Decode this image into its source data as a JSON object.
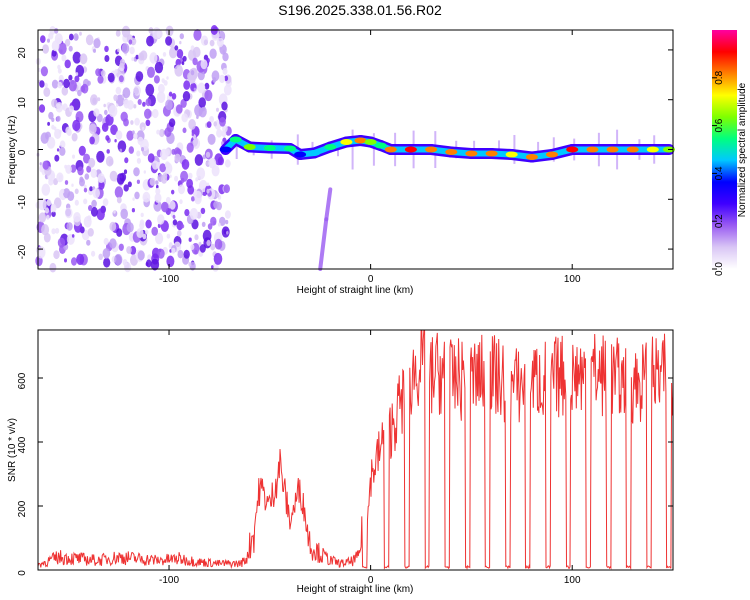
{
  "title": "S196.2025.338.01.56.R02",
  "chart_data": [
    {
      "type": "heatmap",
      "xlabel": "Height of straight line (km)",
      "ylabel": "Frequency (Hz)",
      "xlim": [
        -165,
        150
      ],
      "ylim": [
        -24,
        24
      ],
      "xticks": [
        -100,
        0,
        100
      ],
      "xtick_labels": [
        "-100",
        "0",
        "100"
      ],
      "yticks": [
        20,
        10,
        0,
        -10,
        -20
      ],
      "ytick_labels": [
        "20",
        "10",
        "0",
        "-10",
        "-20"
      ],
      "colorbar": {
        "label": "Normalized spectral amplitude",
        "range": [
          0,
          1
        ],
        "ticks": [
          0.0,
          0.2,
          0.4,
          0.6,
          0.8
        ],
        "tick_labels": [
          "0.0",
          "0.2",
          "0.4",
          "0.6",
          "0.8"
        ],
        "colors": [
          "#ffffff",
          "#d9c6f5",
          "#9a5bf2",
          "#3f00ff",
          "#0000ff",
          "#00c8ff",
          "#00ff80",
          "#7fff00",
          "#ffff00",
          "#ff8000",
          "#ff0000",
          "#ff00a0"
        ]
      },
      "noise_region_x": [
        -165,
        -70
      ],
      "ridge": {
        "x": [
          -72,
          -67,
          -60,
          -50,
          -40,
          -35,
          -28,
          -20,
          -12,
          -5,
          0,
          5,
          10,
          20,
          30,
          40,
          50,
          60,
          70,
          80,
          90,
          100,
          110,
          120,
          130,
          140,
          148
        ],
        "freq": [
          0,
          2,
          0.5,
          0.3,
          0.2,
          -1,
          -0.7,
          0.5,
          1.5,
          1.8,
          1.5,
          0.8,
          0,
          0,
          0,
          -0.5,
          -0.8,
          -0.8,
          -1,
          -1.5,
          -1,
          0,
          0,
          0,
          0,
          0,
          0
        ],
        "amplitude": [
          0.35,
          0.5,
          0.6,
          0.55,
          0.5,
          0.4,
          0.45,
          0.55,
          0.7,
          0.85,
          0.6,
          0.55,
          0.85,
          0.9,
          0.8,
          0.85,
          0.8,
          0.85,
          0.7,
          0.8,
          0.85,
          0.9,
          0.85,
          0.8,
          0.85,
          0.75,
          0.6
        ]
      },
      "secondary_trace": {
        "x": [
          -25,
          -22,
          -20
        ],
        "freq": [
          -24,
          -14,
          -8
        ]
      }
    },
    {
      "type": "line",
      "xlabel": "Height of straight line (km)",
      "ylabel": "SNR (10 * v/v)",
      "xlim": [
        -165,
        150
      ],
      "ylim": [
        0,
        750
      ],
      "xticks": [
        -100,
        0,
        100
      ],
      "xtick_labels": [
        "-100",
        "0",
        "100"
      ],
      "yticks": [
        0,
        200,
        400,
        600
      ],
      "ytick_labels": [
        "0",
        "200",
        "400",
        "600"
      ],
      "series": [
        {
          "name": "SNR",
          "color": "#ee3333",
          "x": [
            -165,
            -155,
            -145,
            -135,
            -125,
            -115,
            -105,
            -95,
            -85,
            -75,
            -65,
            -62,
            -58,
            -55,
            -50,
            -45,
            -40,
            -35,
            -30,
            -25,
            -20,
            -15,
            -10,
            -6,
            -4,
            -3,
            0,
            5,
            10,
            15,
            20,
            25,
            30,
            35,
            40,
            50,
            60,
            70,
            80,
            90,
            100,
            110,
            120,
            130,
            140,
            150
          ],
          "values": [
            15,
            40,
            35,
            30,
            40,
            35,
            30,
            35,
            25,
            20,
            20,
            30,
            120,
            260,
            200,
            330,
            150,
            260,
            80,
            50,
            30,
            20,
            25,
            40,
            120,
            20,
            290,
            380,
            440,
            520,
            600,
            660,
            610,
            620,
            590,
            600,
            610,
            570,
            590,
            600,
            610,
            620,
            600,
            580,
            600,
            610
          ],
          "dropouts_x": [
            -3,
            8,
            18,
            28,
            38,
            48,
            58,
            68,
            78,
            88,
            98,
            108,
            118,
            128,
            138,
            148
          ]
        }
      ]
    }
  ]
}
